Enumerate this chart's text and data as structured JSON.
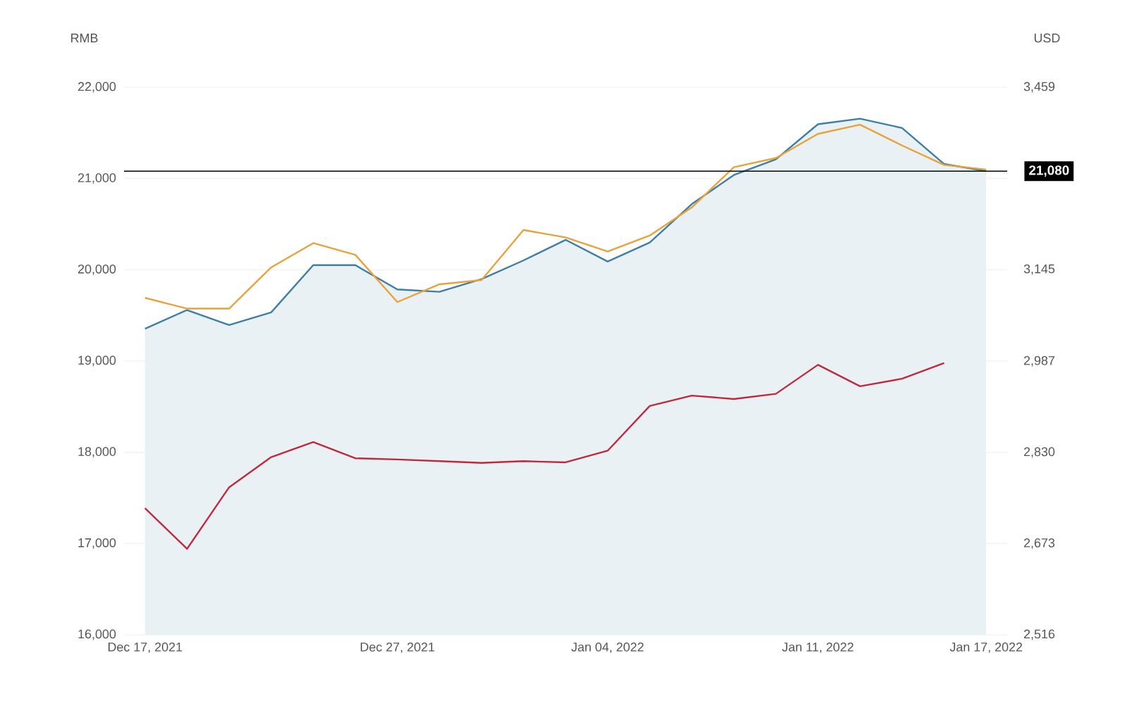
{
  "chart_data": {
    "type": "line",
    "ylabel": "RMB",
    "y2label": "USD",
    "categories": [
      "Dec 17, 2021",
      null,
      null,
      null,
      null,
      null,
      "Dec 27, 2021",
      null,
      null,
      null,
      null,
      "Jan 04, 2022",
      null,
      null,
      null,
      null,
      "Jan 11, 2022",
      null,
      null,
      null,
      "Jan 17, 2022"
    ],
    "series": [
      {
        "type": "area",
        "color": "#3d7ea6",
        "values": [
          19354,
          19559,
          19395,
          19533,
          20051,
          20051,
          19785,
          19759,
          19897,
          20103,
          20328,
          20090,
          20299,
          20719,
          21038,
          21210,
          21595,
          21656,
          21554,
          21159,
          21081
        ]
      },
      {
        "color": "#e8a23a",
        "values": [
          19692,
          19574,
          19574,
          20026,
          20292,
          20164,
          19646,
          19841,
          19887,
          20436,
          20354,
          20200,
          20375,
          20683,
          21124,
          21225,
          21489,
          21590,
          21362,
          21149,
          21099
        ]
      },
      {
        "color": "#c0283c",
        "axis": "y2",
        "values": [
          2734,
          2664,
          2770,
          2822,
          2848,
          2820,
          2818,
          2815,
          2812,
          2815,
          2813,
          2833,
          2910,
          2928,
          2922,
          2931,
          2981,
          2944,
          2957,
          2984,
          null
        ]
      }
    ],
    "ylim": [
      16000,
      22000
    ],
    "yticks": [
      {
        "value": 16000,
        "label": "16,000"
      },
      {
        "value": 17000,
        "label": "17,000"
      },
      {
        "value": 18000,
        "label": "18,000"
      },
      {
        "value": 19000,
        "label": "19,000"
      },
      {
        "value": 20000,
        "label": "20,000"
      },
      {
        "value": 21000,
        "label": "21,000"
      },
      {
        "value": 22000,
        "label": "22,000"
      }
    ],
    "y2lim": [
      2516,
      3459
    ],
    "y2ticks": [
      {
        "value": 2516,
        "label": "2,516"
      },
      {
        "value": 2673,
        "label": "2,673"
      },
      {
        "value": 2830,
        "label": "2,830"
      },
      {
        "value": 2987,
        "label": "2,987"
      },
      {
        "value": 3145,
        "label": "3,145"
      },
      {
        "value": 3459,
        "label": "3,459"
      }
    ],
    "ref_lines": [
      {
        "axis": "y",
        "value": 21080,
        "label": "21,080",
        "color": "#000000"
      }
    ],
    "grid": "y"
  }
}
